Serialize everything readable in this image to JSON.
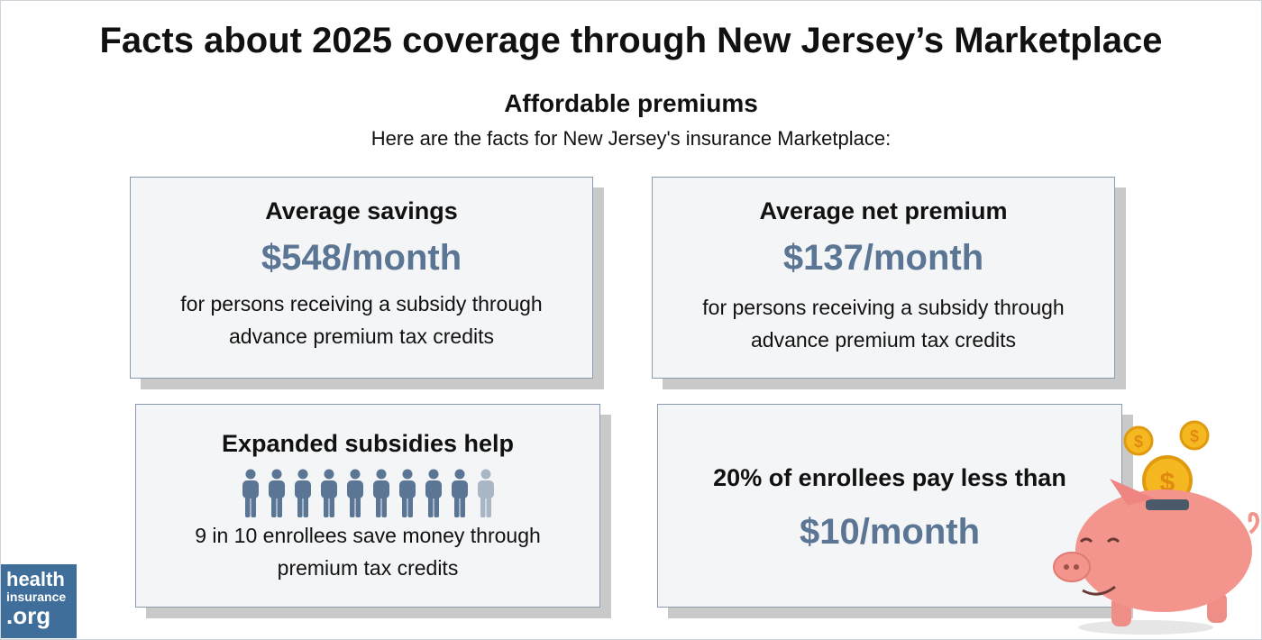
{
  "title": "Facts about 2025 coverage through New Jersey’s Marketplace",
  "section": {
    "heading": "Affordable premiums",
    "intro": "Here are the facts for New Jersey's insurance Marketplace:"
  },
  "cards": [
    {
      "heading": "Average savings",
      "value": "$548/month",
      "description": "for persons receiving a subsidy through advance premium tax credits"
    },
    {
      "heading": "Average net premium",
      "value": "$137/month",
      "description": "for persons receiving a subsidy through advance premium tax credits"
    },
    {
      "heading": "Expanded subsidies help",
      "description": "9 in 10 enrollees save money through premium tax credits"
    },
    {
      "heading": "20% of enrollees pay less than",
      "value": "$10/month"
    }
  ],
  "icon_array": {
    "total": 10,
    "filled": 9
  },
  "logo": {
    "line1": "health",
    "line2": "insurance",
    "line3": ".org"
  }
}
